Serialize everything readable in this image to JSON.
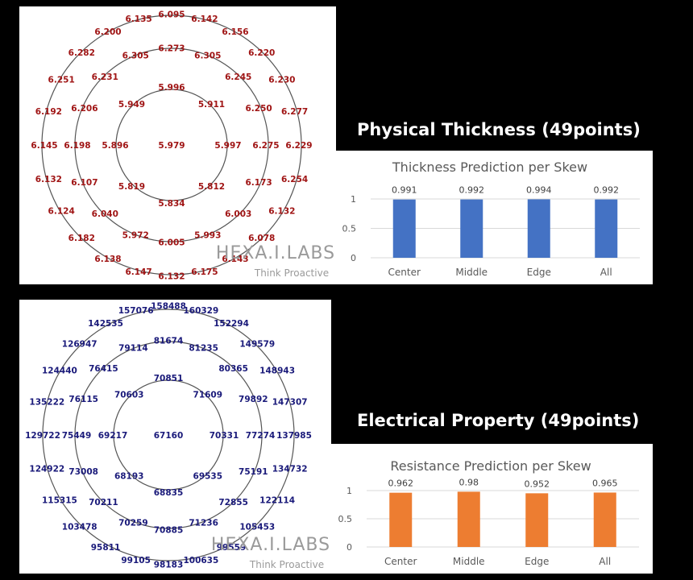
{
  "branding": {
    "logo_text": "HEXA.I.LABS",
    "tagline": "Think Proactive"
  },
  "colors": {
    "thickness_text": "#a01515",
    "resistance_text": "#1a1a7a",
    "thickness_bar": "#4472c4",
    "resistance_bar": "#ed7d31",
    "ring": "#555555"
  },
  "sections": {
    "physical": {
      "title": "Physical Thickness (49points)"
    },
    "electrical": {
      "title": "Electrical Property (49points)"
    }
  },
  "wafer_maps": {
    "thickness": {
      "center": [
        "5.979"
      ],
      "inner": [
        "5.996",
        "5.911",
        "5.997",
        "5.812",
        "5.834",
        "5.819",
        "5.896",
        "5.949"
      ],
      "middle": [
        "6.273",
        "6.305",
        "6.245",
        "6.250",
        "6.275",
        "6.173",
        "6.003",
        "5.993",
        "6.005",
        "5.972",
        "6.040",
        "6.107",
        "6.198",
        "6.206",
        "6.231",
        "6.305"
      ],
      "outer": [
        "6.095",
        "6.142",
        "6.156",
        "6.220",
        "6.230",
        "6.277",
        "6.229",
        "6.254",
        "6.132",
        "6.078",
        "6.143",
        "6.175",
        "6.132",
        "6.147",
        "6.138",
        "6.182",
        "6.124",
        "6.132",
        "6.145",
        "6.192",
        "6.251",
        "6.282",
        "6.200",
        "6.135"
      ]
    },
    "resistance": {
      "center": [
        "67160"
      ],
      "inner": [
        "70851",
        "71609",
        "70331",
        "69535",
        "68835",
        "68193",
        "69217",
        "70603"
      ],
      "middle": [
        "81674",
        "81235",
        "80365",
        "79892",
        "77274",
        "75191",
        "72855",
        "71236",
        "70885",
        "70259",
        "70211",
        "73008",
        "75449",
        "76115",
        "76415",
        "79114"
      ],
      "outer": [
        "158488",
        "160329",
        "152294",
        "149579",
        "148943",
        "147307",
        "137985",
        "134732",
        "122114",
        "105453",
        "99559",
        "100635",
        "98183",
        "99105",
        "95811",
        "103478",
        "115315",
        "124922",
        "129722",
        "135222",
        "124440",
        "126947",
        "142535",
        "157076"
      ]
    }
  },
  "chart_data": [
    {
      "type": "bar",
      "title": "Thickness Prediction per Skew",
      "categories": [
        "Center",
        "Middle",
        "Edge",
        "All"
      ],
      "values": [
        0.991,
        0.992,
        0.994,
        0.992
      ],
      "data_labels": [
        "0.991",
        "0.992",
        "0.994",
        "0.992"
      ],
      "yticks": [
        "0",
        "0.5",
        "1"
      ],
      "ylim": [
        0,
        1
      ],
      "grid": true,
      "color": "#4472c4"
    },
    {
      "type": "bar",
      "title": "Resistance Prediction per Skew",
      "categories": [
        "Center",
        "Middle",
        "Edge",
        "All"
      ],
      "values": [
        0.962,
        0.98,
        0.952,
        0.965
      ],
      "data_labels": [
        "0.962",
        "0.98",
        "0.952",
        "0.965"
      ],
      "yticks": [
        "0",
        "0.5",
        "1"
      ],
      "ylim": [
        0,
        1
      ],
      "grid": true,
      "color": "#ed7d31"
    }
  ]
}
